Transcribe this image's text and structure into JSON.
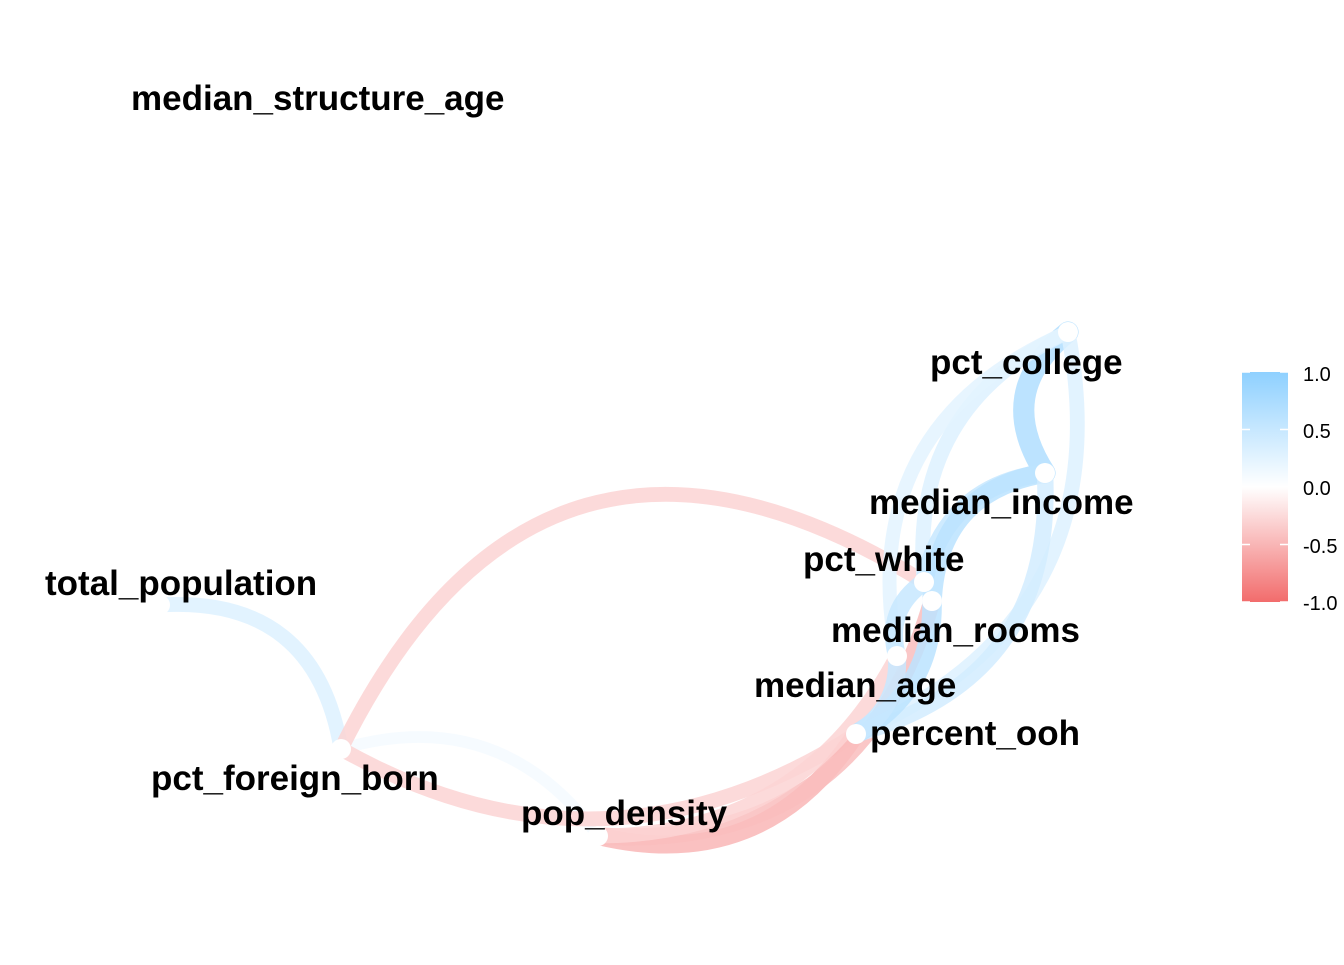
{
  "chart_data": {
    "type": "network",
    "nodes": [
      {
        "id": "median_structure_age",
        "label": "median_structure_age"
      },
      {
        "id": "pct_college",
        "label": "pct_college"
      },
      {
        "id": "median_income",
        "label": "median_income"
      },
      {
        "id": "pct_white",
        "label": "pct_white"
      },
      {
        "id": "median_rooms",
        "label": "median_rooms"
      },
      {
        "id": "median_age",
        "label": "median_age"
      },
      {
        "id": "percent_ooh",
        "label": "percent_ooh"
      },
      {
        "id": "total_population",
        "label": "total_population"
      },
      {
        "id": "pct_foreign_born",
        "label": "pct_foreign_born"
      },
      {
        "id": "pop_density",
        "label": "pop_density"
      }
    ],
    "edges": [
      {
        "from": "total_population",
        "to": "pct_foreign_born",
        "r": 0.3
      },
      {
        "from": "pct_foreign_born",
        "to": "pop_density",
        "r": 0.1
      },
      {
        "from": "pct_foreign_born",
        "to": "pct_white",
        "r": -0.3
      },
      {
        "from": "pct_foreign_born",
        "to": "percent_ooh",
        "r": -0.3
      },
      {
        "from": "pop_density",
        "to": "percent_ooh",
        "r": -0.5
      },
      {
        "from": "pop_density",
        "to": "median_rooms",
        "r": -0.45
      },
      {
        "from": "pop_density",
        "to": "median_age",
        "r": -0.3
      },
      {
        "from": "pct_college",
        "to": "median_income",
        "r": 0.7
      },
      {
        "from": "pct_college",
        "to": "pct_white",
        "r": 0.3
      },
      {
        "from": "pct_college",
        "to": "median_age",
        "r": 0.25
      },
      {
        "from": "pct_college",
        "to": "percent_ooh",
        "r": 0.3
      },
      {
        "from": "median_income",
        "to": "pct_white",
        "r": 0.5
      },
      {
        "from": "median_income",
        "to": "median_rooms",
        "r": 0.6
      },
      {
        "from": "median_income",
        "to": "percent_ooh",
        "r": 0.4
      },
      {
        "from": "pct_white",
        "to": "median_age",
        "r": 0.5
      },
      {
        "from": "median_rooms",
        "to": "percent_ooh",
        "r": 0.6
      },
      {
        "from": "median_age",
        "to": "percent_ooh",
        "r": 0.5
      }
    ],
    "legend": {
      "position": "right",
      "ticks": [
        "1.0",
        "0.5",
        "0.0",
        "-0.5",
        "-1.0"
      ],
      "tick_values": [
        1.0,
        0.5,
        0.0,
        -0.5,
        -1.0
      ],
      "colors": {
        "high": "#8ED0FF",
        "mid": "#FFFFFF",
        "low": "#F26C6C"
      }
    }
  }
}
